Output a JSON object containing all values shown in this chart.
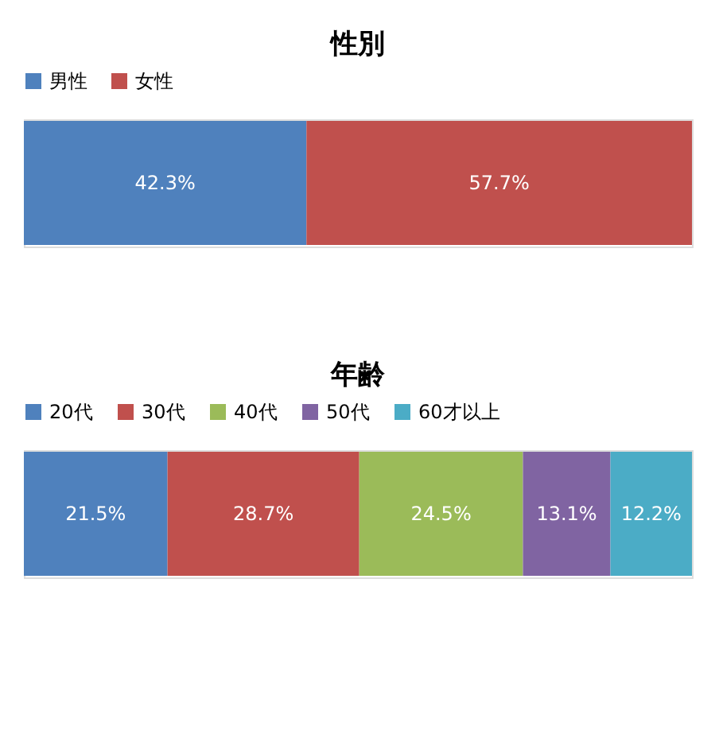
{
  "chart_data": [
    {
      "type": "bar",
      "title": "性別",
      "orientation": "horizontal",
      "stacked": true,
      "legend": "top",
      "categories": [
        null
      ],
      "series": [
        {
          "name": "男性",
          "color": "#4f81bd",
          "values": [
            42.3
          ],
          "value_labels": [
            "42.3%"
          ]
        },
        {
          "name": "女性",
          "color": "#c0504d",
          "values": [
            57.7
          ],
          "value_labels": [
            "57.7%"
          ]
        }
      ]
    },
    {
      "type": "bar",
      "title": "年齢",
      "orientation": "horizontal",
      "stacked": true,
      "legend": "top",
      "categories": [
        null
      ],
      "series": [
        {
          "name": "20代",
          "color": "#4f81bd",
          "values": [
            21.5
          ],
          "value_labels": [
            "21.5%"
          ]
        },
        {
          "name": "30代",
          "color": "#c0504d",
          "values": [
            28.7
          ],
          "value_labels": [
            "28.7%"
          ]
        },
        {
          "name": "40代",
          "color": "#9bbb59",
          "values": [
            24.5
          ],
          "value_labels": [
            "24.5%"
          ]
        },
        {
          "name": "50代",
          "color": "#8064a2",
          "values": [
            13.1
          ],
          "value_labels": [
            "13.1%"
          ]
        },
        {
          "name": "60才以上",
          "color": "#4bacc6",
          "values": [
            12.2
          ],
          "value_labels": [
            "12.2%"
          ]
        }
      ]
    }
  ]
}
